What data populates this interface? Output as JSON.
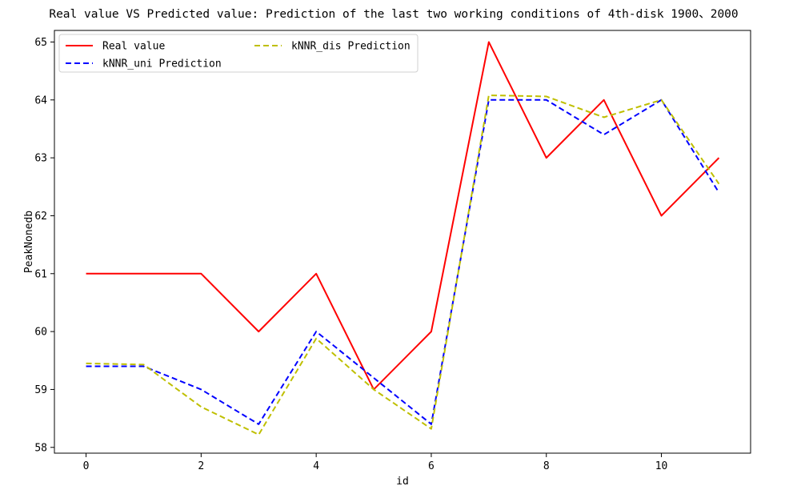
{
  "chart_data": {
    "type": "line",
    "title": "Real value VS Predicted value: Prediction of the last two working conditions of 4th-disk 1900、2000",
    "xlabel": "id",
    "ylabel": "PeakNonedb",
    "x": [
      0,
      1,
      2,
      3,
      4,
      5,
      6,
      7,
      8,
      9,
      10,
      11
    ],
    "xlim": [
      -0.55,
      11.55
    ],
    "ylim": [
      57.9,
      65.2
    ],
    "xticks": [
      0,
      2,
      4,
      6,
      8,
      10
    ],
    "yticks": [
      58,
      59,
      60,
      61,
      62,
      63,
      64,
      65
    ],
    "xtick_labels": [
      "0",
      "2",
      "4",
      "6",
      "8",
      "10"
    ],
    "ytick_labels": [
      "58",
      "59",
      "60",
      "61",
      "62",
      "63",
      "64",
      "65"
    ],
    "grid": false,
    "legend_position": "top-left",
    "series": [
      {
        "name": "Real value",
        "color": "#ff0000",
        "style": "solid",
        "values": [
          61.0,
          61.0,
          61.0,
          60.0,
          61.0,
          59.0,
          60.0,
          65.0,
          63.0,
          64.0,
          62.0,
          63.0
        ]
      },
      {
        "name": "kNNR_uni Prediction",
        "color": "#0000ff",
        "style": "dashed",
        "values": [
          59.4,
          59.4,
          59.0,
          58.4,
          60.0,
          59.2,
          58.4,
          64.0,
          64.0,
          63.4,
          64.0,
          62.4
        ]
      },
      {
        "name": "kNNR_dis Prediction",
        "color": "#bfbf00",
        "style": "dashed",
        "values": [
          59.45,
          59.43,
          58.7,
          58.22,
          59.88,
          59.0,
          58.32,
          64.08,
          64.06,
          63.7,
          64.0,
          62.55
        ]
      }
    ]
  }
}
